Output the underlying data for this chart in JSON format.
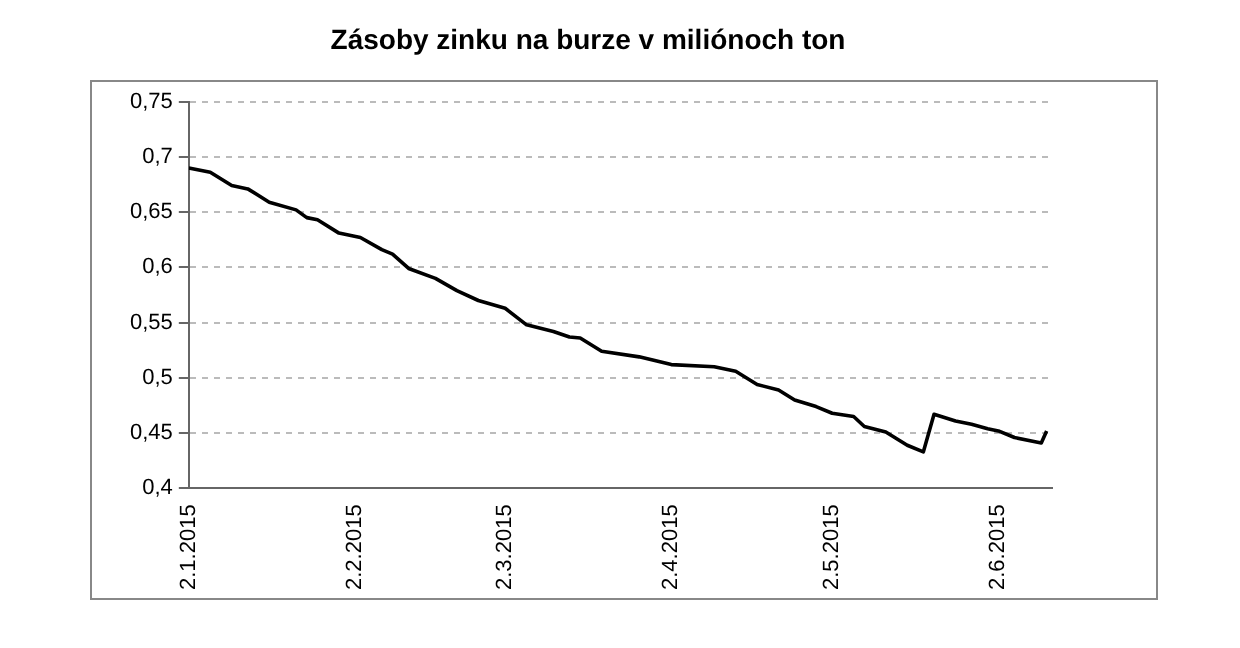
{
  "chart_data": {
    "type": "line",
    "title": "Zásoby zinku na burze v miliónoch ton",
    "x": [
      "2015-01-02",
      "2015-01-06",
      "2015-01-10",
      "2015-01-13",
      "2015-01-17",
      "2015-01-22",
      "2015-01-24",
      "2015-01-26",
      "2015-01-30",
      "2015-02-03",
      "2015-02-07",
      "2015-02-09",
      "2015-02-12",
      "2015-02-17",
      "2015-02-21",
      "2015-02-25",
      "2015-03-02",
      "2015-03-06",
      "2015-03-11",
      "2015-03-14",
      "2015-03-16",
      "2015-03-20",
      "2015-03-27",
      "2015-04-02",
      "2015-04-10",
      "2015-04-14",
      "2015-04-18",
      "2015-04-22",
      "2015-04-25",
      "2015-04-29",
      "2015-05-02",
      "2015-05-06",
      "2015-05-08",
      "2015-05-12",
      "2015-05-16",
      "2015-05-19",
      "2015-05-21",
      "2015-05-25",
      "2015-05-28",
      "2015-05-31",
      "2015-06-02",
      "2015-06-05",
      "2015-06-10",
      "2015-06-11"
    ],
    "series": [
      {
        "color": "#000000",
        "values": [
          0.69,
          0.686,
          0.674,
          0.671,
          0.659,
          0.652,
          0.645,
          0.643,
          0.631,
          0.627,
          0.616,
          0.612,
          0.599,
          0.59,
          0.579,
          0.57,
          0.563,
          0.548,
          0.542,
          0.537,
          0.536,
          0.524,
          0.519,
          0.512,
          0.51,
          0.506,
          0.494,
          0.489,
          0.48,
          0.474,
          0.468,
          0.465,
          0.456,
          0.451,
          0.439,
          0.433,
          0.467,
          0.461,
          0.458,
          0.454,
          0.452,
          0.446,
          0.441,
          0.452
        ]
      }
    ],
    "xlim": [
      "2015-01-02",
      "2015-06-12"
    ],
    "xticks": [
      {
        "value": "2015-01-02",
        "label": "2.1.2015"
      },
      {
        "value": "2015-02-02",
        "label": "2.2.2015"
      },
      {
        "value": "2015-03-02",
        "label": "2.3.2015"
      },
      {
        "value": "2015-04-02",
        "label": "2.4.2015"
      },
      {
        "value": "2015-05-02",
        "label": "2.5.2015"
      },
      {
        "value": "2015-06-02",
        "label": "2.6.2015"
      }
    ],
    "ylim": [
      0.4,
      0.75
    ],
    "yticks": [
      {
        "value": 0.4,
        "label": "0,4"
      },
      {
        "value": 0.45,
        "label": "0,45"
      },
      {
        "value": 0.5,
        "label": "0,5"
      },
      {
        "value": 0.55,
        "label": "0,55"
      },
      {
        "value": 0.6,
        "label": "0,6"
      },
      {
        "value": 0.65,
        "label": "0,65"
      },
      {
        "value": 0.7,
        "label": "0,7"
      },
      {
        "value": 0.75,
        "label": "0,75"
      }
    ],
    "grid": "y",
    "legend": false,
    "marker": "none",
    "line_style": "solid"
  }
}
